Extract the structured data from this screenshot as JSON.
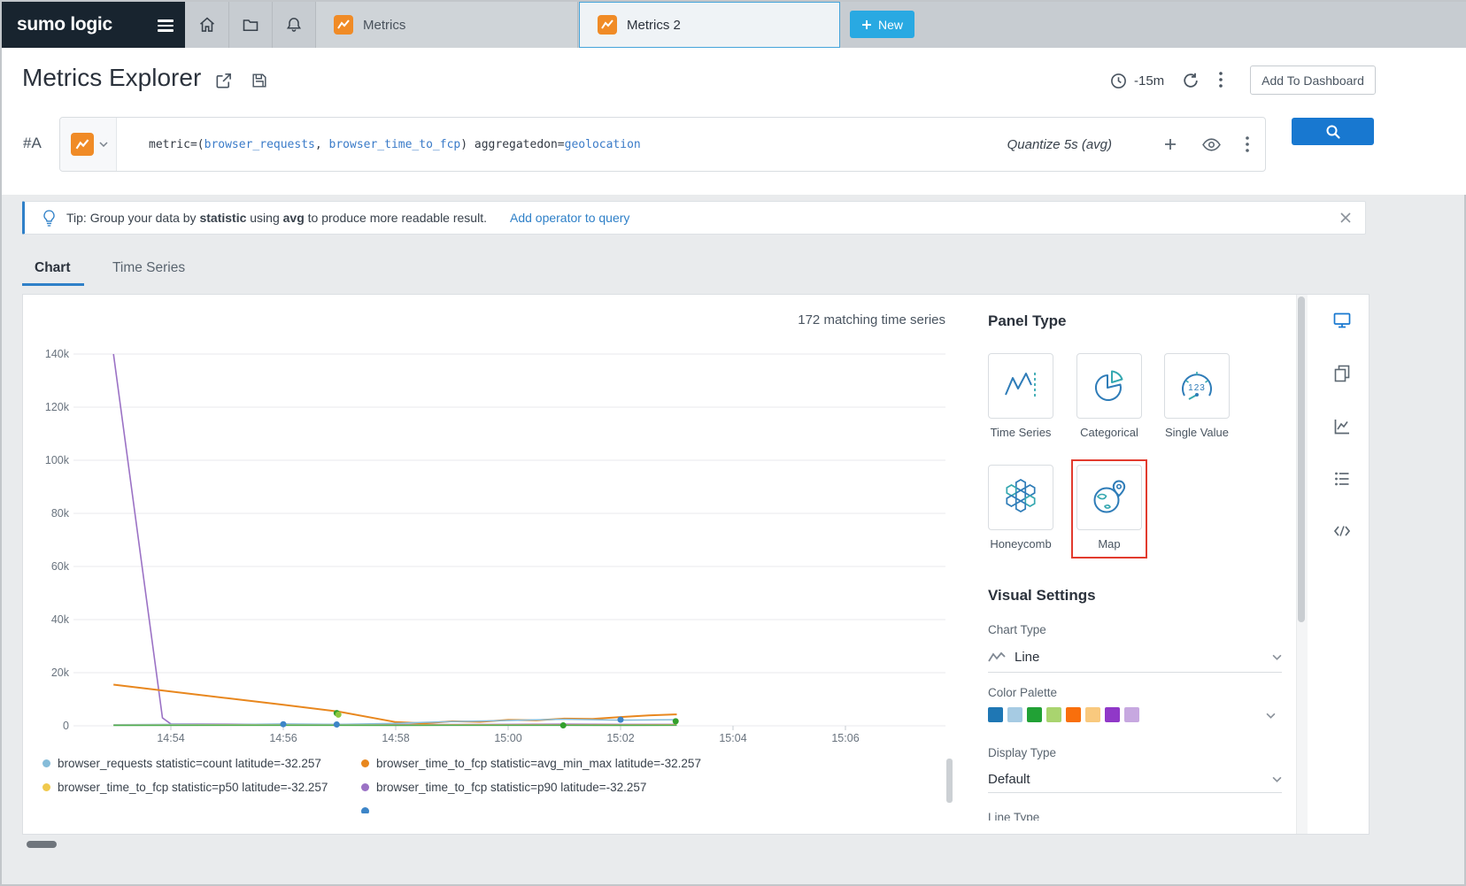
{
  "topnav": {
    "logo": "sumo logic",
    "tabs": [
      {
        "label": "Metrics"
      },
      {
        "label": "Metrics 2"
      }
    ],
    "new_label": "New"
  },
  "header": {
    "title": "Metrics Explorer",
    "time_range": "-15m",
    "add_to_dashboard": "Add To Dashboard"
  },
  "query": {
    "row_label": "#A",
    "segments": [
      {
        "text": "metric=(",
        "type": "plain"
      },
      {
        "text": "browser_requests",
        "type": "token"
      },
      {
        "text": ", ",
        "type": "plain"
      },
      {
        "text": "browser_time_to_fcp",
        "type": "token"
      },
      {
        "text": ") ",
        "type": "plain"
      },
      {
        "text": "aggregatedon=",
        "type": "plain"
      },
      {
        "text": "geolocation",
        "type": "token"
      }
    ],
    "quantize": "Quantize 5s (avg)"
  },
  "tip": {
    "pre": "Tip: Group your data by ",
    "bold1": "statistic",
    "mid": " using ",
    "bold2": "avg",
    "post": " to produce more readable result.",
    "link": "Add operator to query"
  },
  "view_tabs": {
    "chart": "Chart",
    "time_series": "Time Series"
  },
  "chart": {
    "matching": "172 matching time series"
  },
  "chart_data": {
    "type": "line",
    "x_axis": {
      "ticks": [
        "14:54",
        "14:56",
        "14:58",
        "15:00",
        "15:02",
        "15:04",
        "15:06"
      ],
      "tick_minutes": [
        0,
        2,
        4,
        6,
        8,
        10,
        12
      ]
    },
    "y_axis": {
      "ticks": [
        "0",
        "20k",
        "40k",
        "60k",
        "80k",
        "100k",
        "120k",
        "140k"
      ],
      "values": [
        0,
        20000,
        40000,
        60000,
        80000,
        100000,
        120000,
        140000
      ],
      "max": 140000
    },
    "series": [
      {
        "name": "browser_time_to_fcp statistic=p90 latitude=-32.257",
        "color": "#9b72c5",
        "width": 1.6,
        "points": [
          [
            -1.02,
            140000
          ],
          [
            -0.15,
            3000
          ],
          [
            0,
            700
          ],
          [
            1,
            600
          ],
          [
            2,
            500
          ],
          [
            3,
            450
          ],
          [
            4,
            450
          ],
          [
            5,
            500
          ],
          [
            6,
            550
          ],
          [
            7,
            600
          ],
          [
            8,
            550
          ],
          [
            9,
            550
          ]
        ]
      },
      {
        "name": "browser_time_to_fcp statistic=avg_min_max latitude=-32.257",
        "color": "#e8871e",
        "width": 2,
        "points": [
          [
            -1.02,
            15500
          ],
          [
            0,
            12900
          ],
          [
            1,
            10400
          ],
          [
            2,
            7900
          ],
          [
            3,
            5300
          ],
          [
            4,
            1400
          ],
          [
            4.5,
            900
          ],
          [
            5,
            1700
          ],
          [
            5.5,
            1500
          ],
          [
            6,
            2200
          ],
          [
            6.5,
            2100
          ],
          [
            7,
            2700
          ],
          [
            7.5,
            2600
          ],
          [
            8,
            3300
          ],
          [
            8.5,
            3900
          ],
          [
            9,
            4300
          ]
        ]
      },
      {
        "name": "browser_requests statistic=count latitude=-32.257",
        "color": "#85bcd9",
        "width": 1.5,
        "points": [
          [
            -1.02,
            400
          ],
          [
            0,
            550
          ],
          [
            1,
            450
          ],
          [
            2,
            700
          ],
          [
            3,
            550
          ],
          [
            4,
            900
          ],
          [
            4.5,
            1300
          ],
          [
            5,
            1600
          ],
          [
            6,
            2000
          ],
          [
            6.5,
            2250
          ],
          [
            7,
            2450
          ],
          [
            8,
            2150
          ],
          [
            9,
            2300
          ]
        ]
      },
      {
        "name": "browser_time_to_fcp statistic=p50 latitude=-32.257",
        "color": "#f0c94c",
        "width": 1.4,
        "points": [
          [
            -1.02,
            250
          ],
          [
            1,
            300
          ],
          [
            3,
            280
          ],
          [
            5,
            330
          ],
          [
            7,
            300
          ],
          [
            9,
            330
          ]
        ]
      },
      {
        "name": "",
        "color": "#4cae4f",
        "width": 1.4,
        "points": [
          [
            -1.02,
            150
          ],
          [
            2,
            200
          ],
          [
            4,
            160
          ],
          [
            6,
            210
          ],
          [
            8,
            170
          ],
          [
            9,
            200
          ]
        ]
      }
    ],
    "markers": [
      {
        "color": "#3d85c8",
        "t": 2.0,
        "value": 600
      },
      {
        "color": "#3d85c8",
        "t": 2.95,
        "value": 500
      },
      {
        "color": "#3d85c8",
        "t": 8.0,
        "value": 2300
      },
      {
        "color": "#33a02c",
        "t": 2.95,
        "value": 4800
      },
      {
        "color": "#8dc63f",
        "t": 2.98,
        "value": 4200
      },
      {
        "color": "#33a02c",
        "t": 6.98,
        "value": 150
      },
      {
        "color": "#33a02c",
        "t": 8.98,
        "value": 1700
      }
    ]
  },
  "legend": {
    "items": [
      {
        "color": "#85bcd9",
        "label": "browser_requests statistic=count latitude=-32.257"
      },
      {
        "color": "#e8871e",
        "label": "browser_time_to_fcp statistic=avg_min_max latitude=-32.257"
      },
      {
        "color": "#f0c94c",
        "label": "browser_time_to_fcp statistic=p50 latitude=-32.257"
      },
      {
        "color": "#9b72c5",
        "label": "browser_time_to_fcp statistic=p90 latitude=-32.257"
      },
      {
        "color": "#3d85c8",
        "label": "",
        "col2": true
      }
    ]
  },
  "panel_type": {
    "title": "Panel Type",
    "items": [
      {
        "label": "Time Series"
      },
      {
        "label": "Categorical"
      },
      {
        "label": "Single Value",
        "icon_text": "123"
      },
      {
        "label": "Honeycomb"
      },
      {
        "label": "Map",
        "highlighted": true
      }
    ]
  },
  "visual_settings": {
    "title": "Visual Settings",
    "chart_type_label": "Chart Type",
    "chart_type_value": "Line",
    "color_palette_label": "Color Palette",
    "palette": [
      "#1f77b4",
      "#a6cbe3",
      "#21a135",
      "#a9d46f",
      "#f96f0c",
      "#f9c97e",
      "#9038c8",
      "#c7a8e0"
    ],
    "display_type_label": "Display Type",
    "display_type_value": "Default",
    "line_type_label": "Line Type"
  }
}
